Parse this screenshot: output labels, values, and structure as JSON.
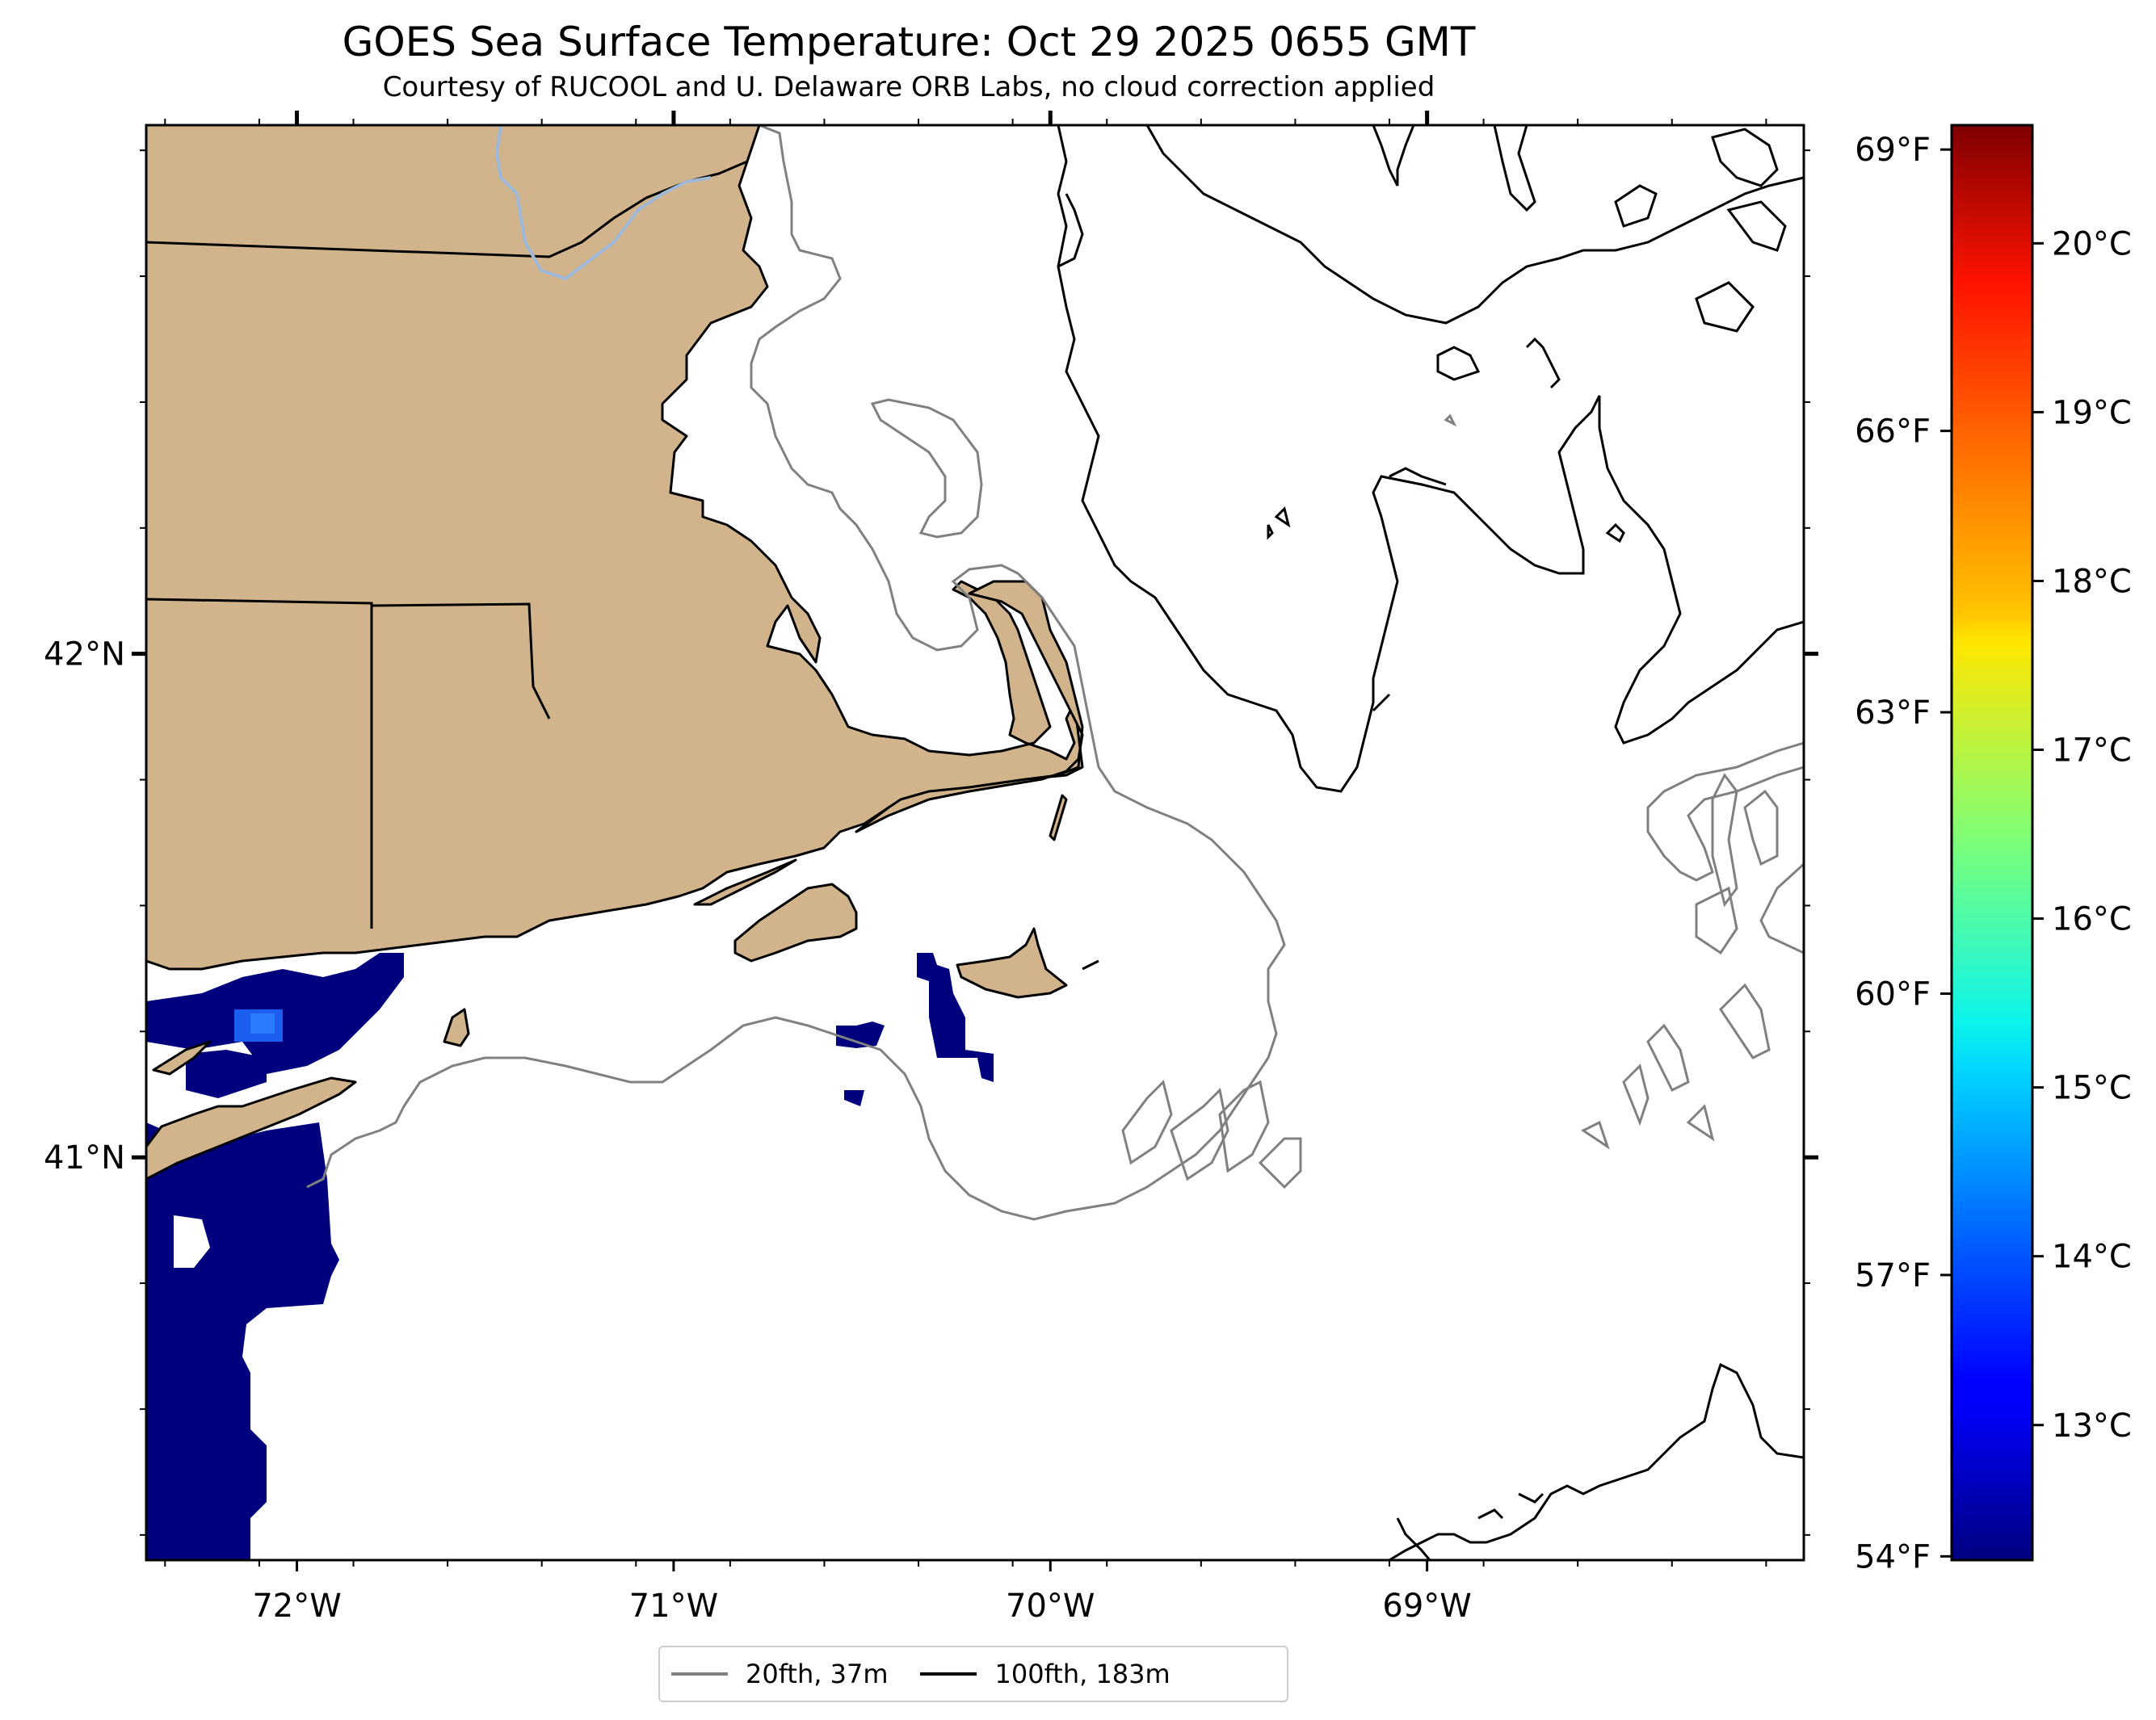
{
  "title": "GOES Sea Surface Temperature: Oct 29 2025 0655 GMT",
  "subtitle": "Courtesy of RUCOOL and U. Delaware ORB Labs, no cloud correction applied",
  "map": {
    "lon_range": [
      -72.4,
      -68.0
    ],
    "lat_range": [
      40.2,
      43.05
    ],
    "lon_ticks": [
      {
        "value": -72,
        "label": "72°W"
      },
      {
        "value": -71,
        "label": "71°W"
      },
      {
        "value": -70,
        "label": "70°W"
      },
      {
        "value": -69,
        "label": "69°W"
      }
    ],
    "lat_ticks": [
      {
        "value": 42,
        "label": "42°N"
      },
      {
        "value": 41,
        "label": "41°N"
      }
    ],
    "land_color": "#d2b48c",
    "coast_color": "#000000",
    "river_color": "#9db8d8"
  },
  "colorbar": {
    "colormap": "jet",
    "range_c": [
      12.2,
      20.7
    ],
    "celsius_ticks": [
      {
        "value": 20,
        "label": "20°C"
      },
      {
        "value": 19,
        "label": "19°C"
      },
      {
        "value": 18,
        "label": "18°C"
      },
      {
        "value": 17,
        "label": "17°C"
      },
      {
        "value": 16,
        "label": "16°C"
      },
      {
        "value": 15,
        "label": "15°C"
      },
      {
        "value": 14,
        "label": "14°C"
      },
      {
        "value": 13,
        "label": "13°C"
      }
    ],
    "fahrenheit_ticks": [
      {
        "value": 69,
        "label": "69°F"
      },
      {
        "value": 66,
        "label": "66°F"
      },
      {
        "value": 63,
        "label": "63°F"
      },
      {
        "value": 60,
        "label": "60°F"
      },
      {
        "value": 57,
        "label": "57°F"
      },
      {
        "value": 54,
        "label": "54°F"
      }
    ]
  },
  "legend": {
    "entries": [
      {
        "label": "20fth, 37m",
        "color": "#808080"
      },
      {
        "label": "100fth, 183m",
        "color": "#000000"
      }
    ]
  }
}
